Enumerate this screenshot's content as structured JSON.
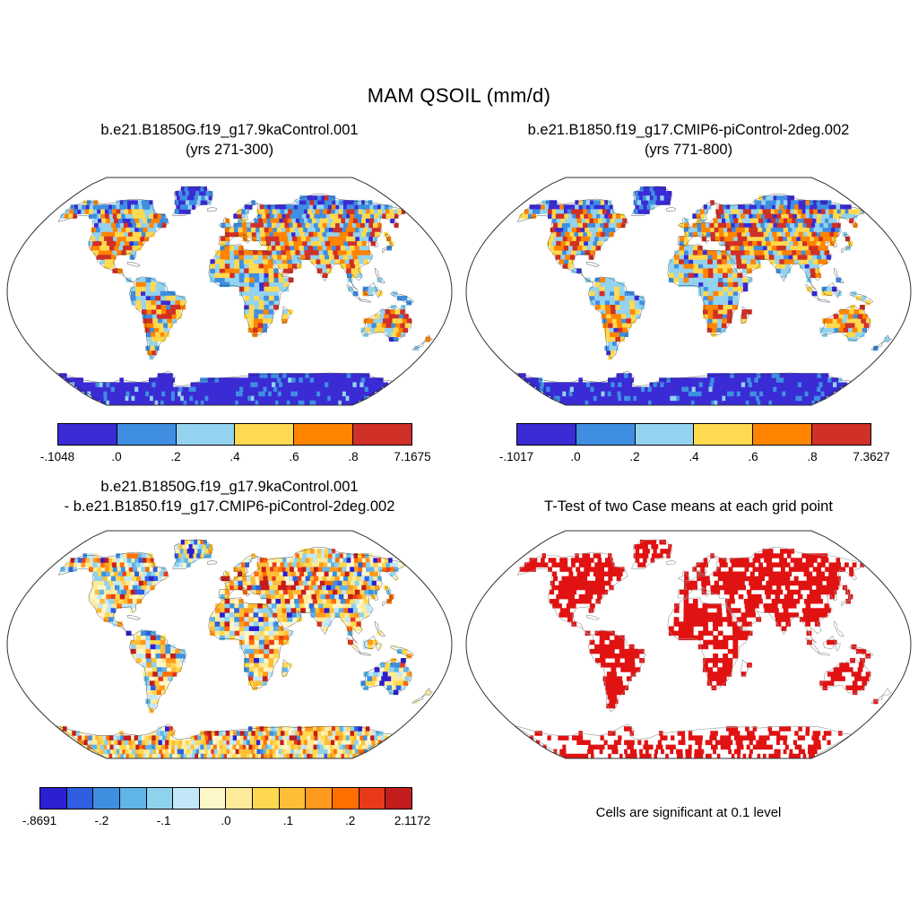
{
  "figure": {
    "title": "MAM QSOIL (mm/d)",
    "background": "#ffffff"
  },
  "panels": [
    {
      "id": "case1",
      "title_line1": "b.e21.B1850G.f19_g17.9kaControl.001",
      "title_line2": "(yrs 271-300)",
      "colorbar": {
        "colors": [
          "#3a2bd4",
          "#3f8ee2",
          "#93d3ef",
          "#ffd94f",
          "#ff8400",
          "#cf3027"
        ],
        "labels": [
          "-.1048",
          ".0",
          ".2",
          ".4",
          ".6",
          ".8",
          "7.1675"
        ]
      }
    },
    {
      "id": "case2",
      "title_line1": "b.e21.B1850.f19_g17.CMIP6-piControl-2deg.002",
      "title_line2": "(yrs 771-800)",
      "colorbar": {
        "colors": [
          "#3a2bd4",
          "#3f8ee2",
          "#93d3ef",
          "#ffd94f",
          "#ff8400",
          "#cf3027"
        ],
        "labels": [
          "-.1017",
          ".0",
          ".2",
          ".4",
          ".6",
          ".8",
          "7.3627"
        ]
      }
    },
    {
      "id": "difference",
      "title_line1": "b.e21.B1850G.f19_g17.9kaControl.001",
      "title_line2": "- b.e21.B1850.f19_g17.CMIP6-piControl-2deg.002",
      "colorbar": {
        "colors": [
          "#2c1fd1",
          "#2f5fe0",
          "#3f8fe0",
          "#5fb4e8",
          "#8fd2ee",
          "#c2e8f8",
          "#fdf6c8",
          "#fdeb9b",
          "#ffd84f",
          "#ffbe37",
          "#ff9a1e",
          "#ff6f00",
          "#e8391b",
          "#c31c1c"
        ],
        "labels": [
          "-.8691",
          "-.2",
          "-.1",
          ".0",
          ".1",
          ".2",
          "2.1172"
        ]
      }
    },
    {
      "id": "ttest",
      "title": "T-Test of two Case means at each grid point",
      "caption": "Cells are significant at 0.1 level",
      "significant_color": "#e01212"
    }
  ],
  "chart_data": [
    {
      "type": "heatmap",
      "subtype": "filled-grid-world-map",
      "projection": "robinson",
      "variable": "MAM QSOIL",
      "units": "mm/d",
      "title": "b.e21.B1850G.f19_g17.9kaControl.001 (yrs 271-300)",
      "colorbar_labels": [
        "-.1048",
        ".0",
        ".2",
        ".4",
        ".6",
        ".8",
        "7.1675"
      ],
      "colorbar_colors": [
        "#3a2bd4",
        "#3f8ee2",
        "#93d3ef",
        "#ffd94f",
        "#ff8400",
        "#cf3027"
      ],
      "value_range": [
        -0.1048,
        7.1675
      ]
    },
    {
      "type": "heatmap",
      "subtype": "filled-grid-world-map",
      "projection": "robinson",
      "variable": "MAM QSOIL",
      "units": "mm/d",
      "title": "b.e21.B1850.f19_g17.CMIP6-piControl-2deg.002 (yrs 771-800)",
      "colorbar_labels": [
        "-.1017",
        ".0",
        ".2",
        ".4",
        ".6",
        ".8",
        "7.3627"
      ],
      "colorbar_colors": [
        "#3a2bd4",
        "#3f8ee2",
        "#93d3ef",
        "#ffd94f",
        "#ff8400",
        "#cf3027"
      ],
      "value_range": [
        -0.1017,
        7.3627
      ]
    },
    {
      "type": "heatmap",
      "subtype": "difference-map",
      "projection": "robinson",
      "variable": "MAM QSOIL difference",
      "units": "mm/d",
      "title": "b.e21.B1850G.f19_g17.9kaControl.001 - b.e21.B1850.f19_g17.CMIP6-piControl-2deg.002",
      "colorbar_labels": [
        "-.8691",
        "-.2",
        "-.1",
        ".0",
        ".1",
        ".2",
        "2.1172"
      ],
      "colorbar_colors": [
        "#2c1fd1",
        "#2f5fe0",
        "#3f8fe0",
        "#5fb4e8",
        "#8fd2ee",
        "#c2e8f8",
        "#fdf6c8",
        "#fdeb9b",
        "#ffd84f",
        "#ffbe37",
        "#ff9a1e",
        "#ff6f00",
        "#e8391b",
        "#c31c1c"
      ],
      "value_range": [
        -0.8691,
        2.1172
      ]
    },
    {
      "type": "heatmap",
      "subtype": "significance-mask",
      "projection": "robinson",
      "title": "T-Test of two Case means at each grid point",
      "note": "Cells are significant at 0.1 level",
      "significant_color": "#e01212"
    }
  ]
}
